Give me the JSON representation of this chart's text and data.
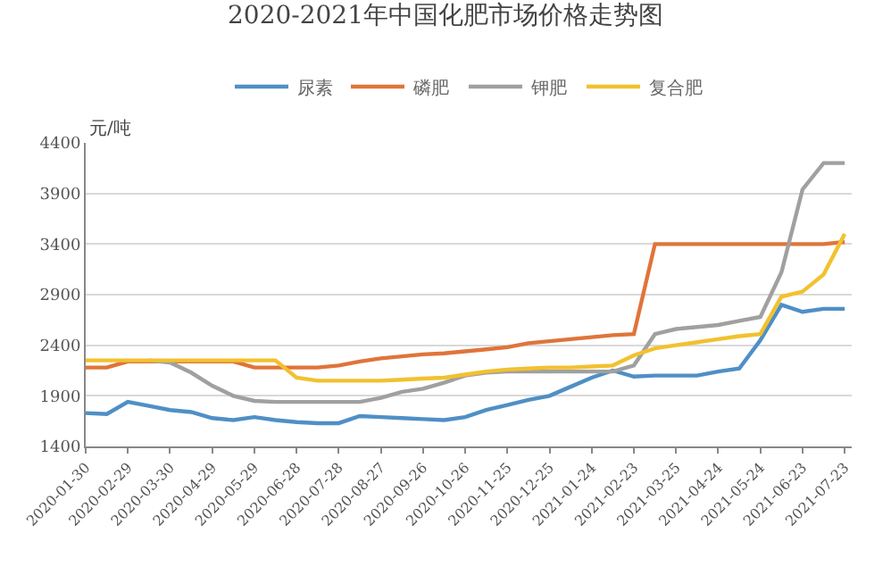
{
  "chart_data": {
    "type": "line",
    "title": "2020-2021年中国化肥市场价格走势图",
    "ylabel": "元/吨",
    "x": [
      "2020-01-30",
      "2020-02-14",
      "2020-02-29",
      "2020-03-15",
      "2020-03-30",
      "2020-04-14",
      "2020-04-29",
      "2020-05-14",
      "2020-05-29",
      "2020-06-13",
      "2020-06-28",
      "2020-07-13",
      "2020-07-28",
      "2020-08-12",
      "2020-08-27",
      "2020-09-11",
      "2020-09-26",
      "2020-10-11",
      "2020-10-26",
      "2020-11-10",
      "2020-11-25",
      "2020-12-10",
      "2020-12-25",
      "2021-01-09",
      "2021-01-24",
      "2021-02-08",
      "2021-02-23",
      "2021-03-10",
      "2021-03-25",
      "2021-04-09",
      "2021-04-24",
      "2021-05-09",
      "2021-05-24",
      "2021-06-08",
      "2021-06-23",
      "2021-07-08",
      "2021-07-23"
    ],
    "series": [
      {
        "name": "尿素",
        "color": "#4f8fc6",
        "values": [
          1730,
          1720,
          1840,
          1800,
          1760,
          1740,
          1680,
          1660,
          1690,
          1660,
          1640,
          1630,
          1630,
          1700,
          1690,
          1680,
          1670,
          1660,
          1690,
          1760,
          1810,
          1860,
          1900,
          1990,
          2080,
          2150,
          2090,
          2100,
          2100,
          2100,
          2140,
          2170,
          2450,
          2800,
          2730,
          2760,
          2760
        ]
      },
      {
        "name": "磷肥",
        "color": "#e0743a",
        "values": [
          2180,
          2180,
          2240,
          2240,
          2240,
          2240,
          2240,
          2240,
          2180,
          2180,
          2180,
          2180,
          2200,
          2240,
          2270,
          2290,
          2310,
          2320,
          2340,
          2360,
          2380,
          2420,
          2440,
          2460,
          2480,
          2500,
          2510,
          3400,
          3400,
          3400,
          3400,
          3400,
          3400,
          3400,
          3400,
          3400,
          3420
        ]
      },
      {
        "name": "钾肥",
        "color": "#a0a0a0",
        "values": [
          null,
          null,
          null,
          2250,
          2230,
          2130,
          2000,
          1900,
          1850,
          1840,
          1840,
          1840,
          1840,
          1840,
          1880,
          1940,
          1970,
          2030,
          2100,
          2130,
          2140,
          2140,
          2140,
          2140,
          2140,
          2140,
          2200,
          2510,
          2560,
          2580,
          2600,
          2640,
          2680,
          3120,
          3940,
          4200,
          4200
        ]
      },
      {
        "name": "复合肥",
        "color": "#f2c12e",
        "values": [
          2250,
          2250,
          2250,
          2250,
          2250,
          2250,
          2250,
          2250,
          2250,
          2250,
          2080,
          2050,
          2050,
          2050,
          2050,
          2060,
          2070,
          2080,
          2110,
          2140,
          2160,
          2170,
          2180,
          2180,
          2190,
          2200,
          2300,
          2370,
          2400,
          2430,
          2460,
          2490,
          2510,
          2880,
          2930,
          3100,
          3500
        ]
      }
    ],
    "xlim": [
      "2020-01-30",
      "2021-07-28"
    ],
    "xticks": [
      {
        "value": "2020-01-30",
        "label": "2020-01-30"
      },
      {
        "value": "2020-02-29",
        "label": "2020-02-29"
      },
      {
        "value": "2020-03-30",
        "label": "2020-03-30"
      },
      {
        "value": "2020-04-29",
        "label": "2020-04-29"
      },
      {
        "value": "2020-05-29",
        "label": "2020-05-29"
      },
      {
        "value": "2020-06-28",
        "label": "2020-06-28"
      },
      {
        "value": "2020-07-28",
        "label": "2020-07-28"
      },
      {
        "value": "2020-08-27",
        "label": "2020-08-27"
      },
      {
        "value": "2020-09-26",
        "label": "2020-09-26"
      },
      {
        "value": "2020-10-26",
        "label": "2020-10-26"
      },
      {
        "value": "2020-11-25",
        "label": "2020-11-25"
      },
      {
        "value": "2020-12-25",
        "label": "2020-12-25"
      },
      {
        "value": "2021-01-24",
        "label": "2021-01-24"
      },
      {
        "value": "2021-02-23",
        "label": "2021-02-23"
      },
      {
        "value": "2021-03-25",
        "label": "2021-03-25"
      },
      {
        "value": "2021-04-24",
        "label": "2021-04-24"
      },
      {
        "value": "2021-05-24",
        "label": "2021-05-24"
      },
      {
        "value": "2021-06-23",
        "label": "2021-06-23"
      },
      {
        "value": "2021-07-23",
        "label": "2021-07-23"
      }
    ],
    "ylim": [
      1400,
      4400
    ],
    "yticks": [
      1400,
      1900,
      2400,
      2900,
      3400,
      3900,
      4400
    ],
    "grid": "y",
    "legend": "top",
    "marker": "none",
    "line_style": "solid"
  }
}
